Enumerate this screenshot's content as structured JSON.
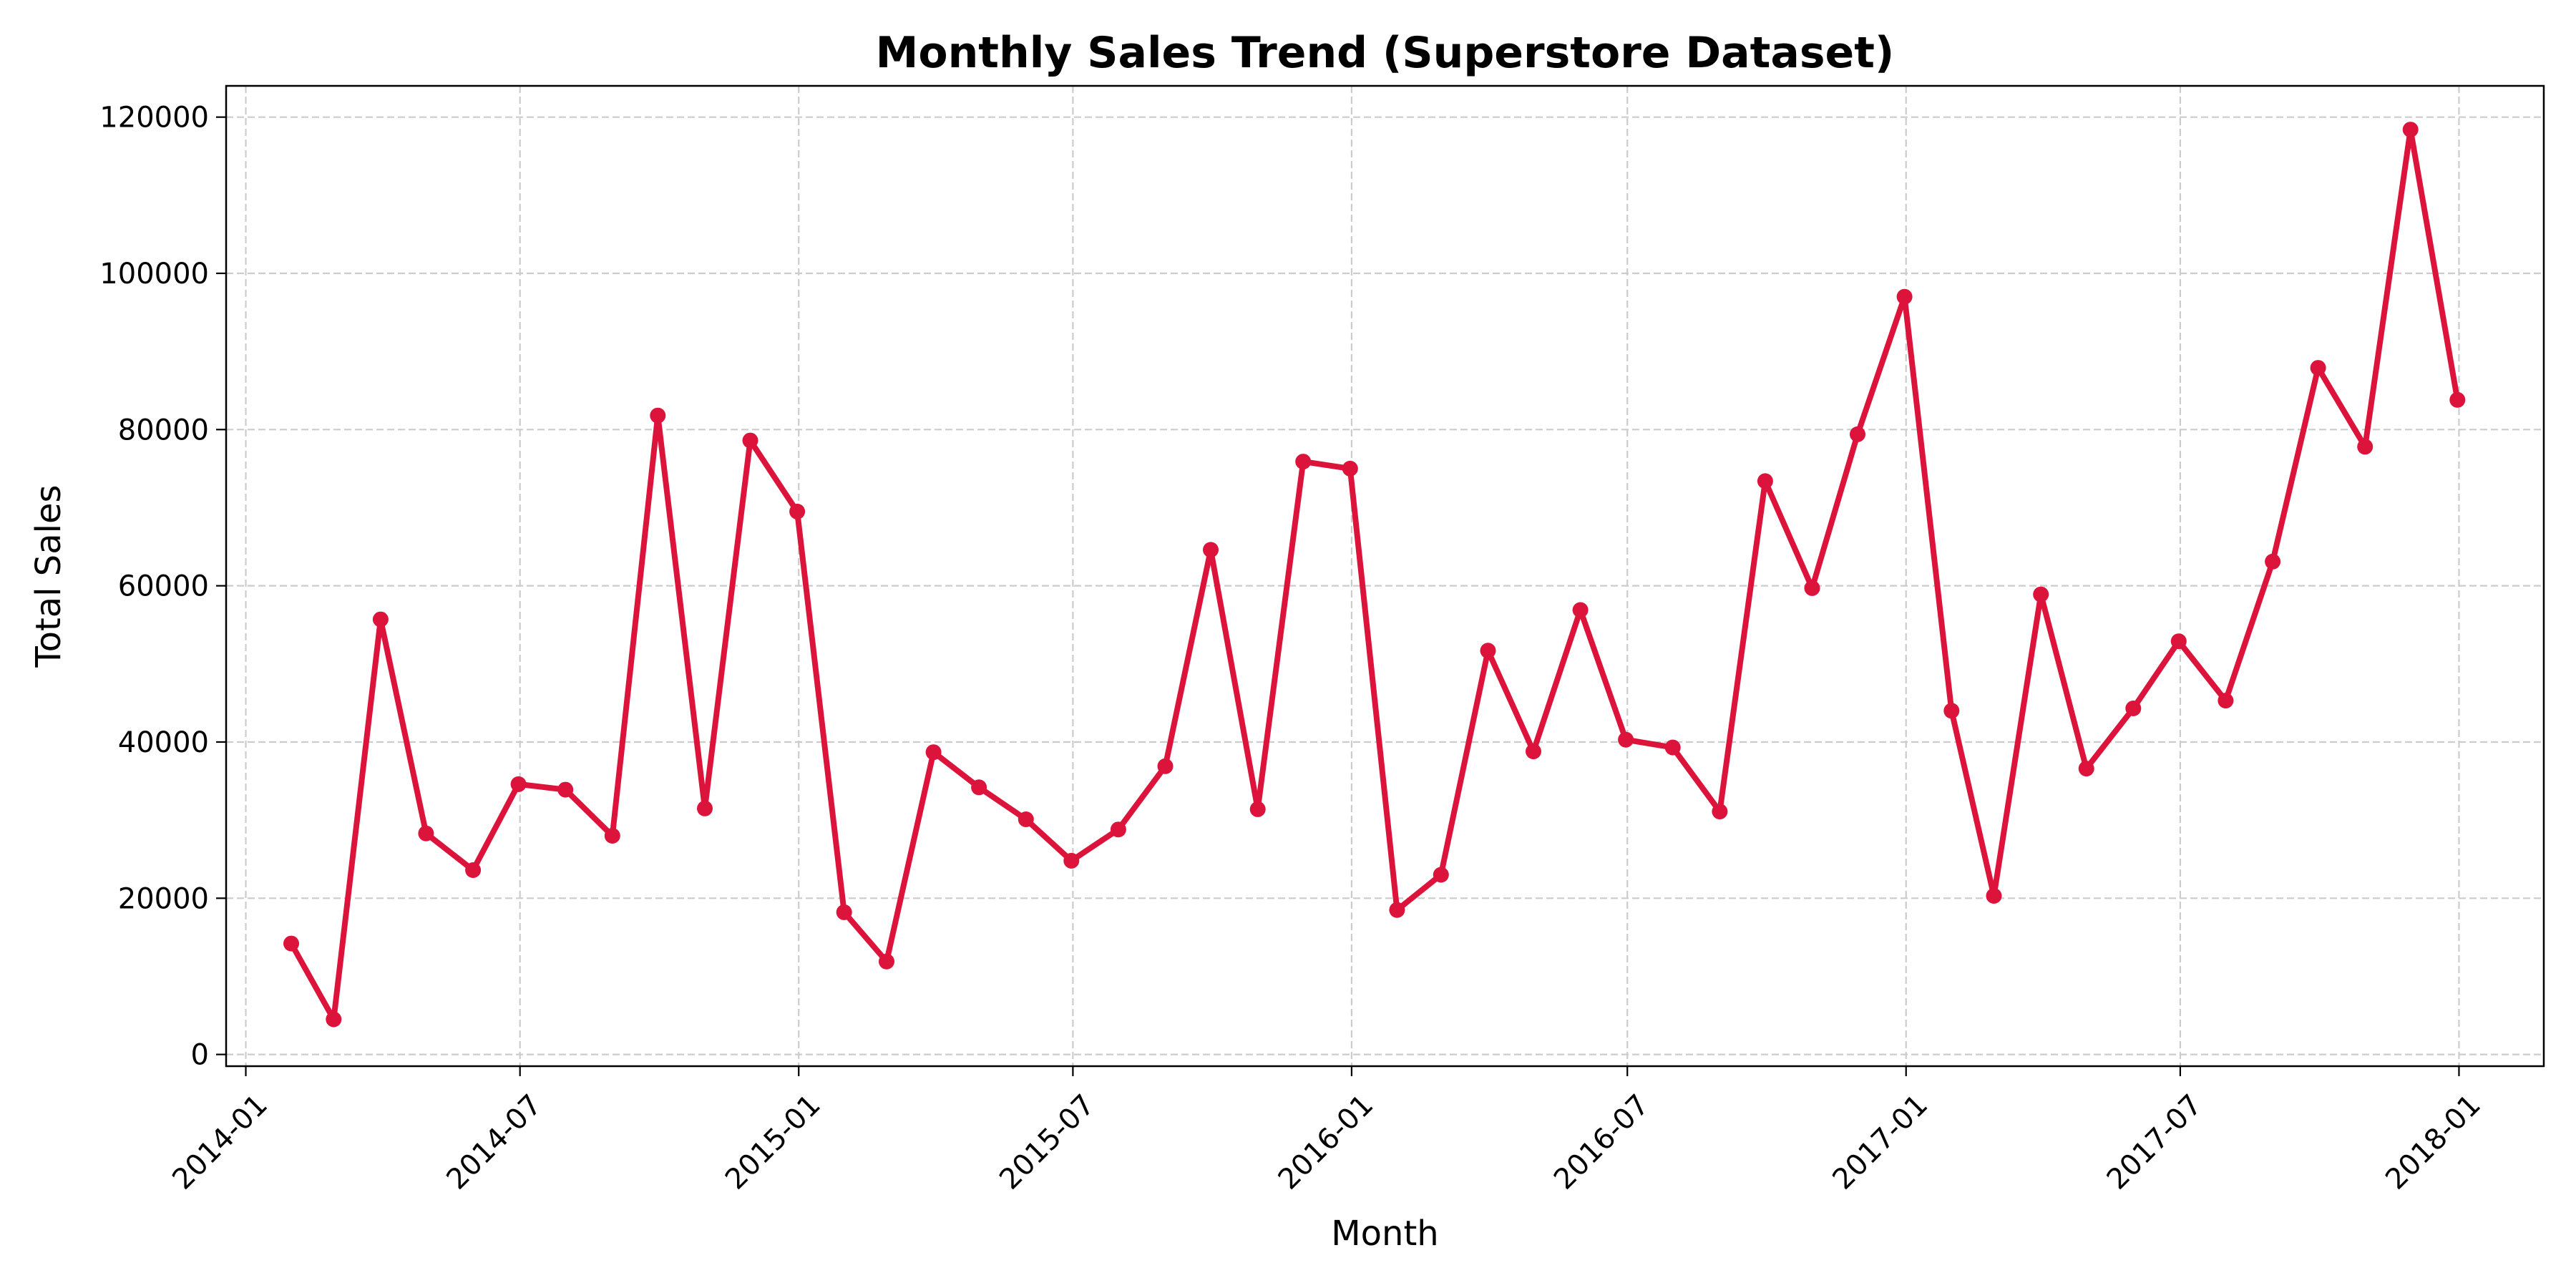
{
  "chart_data": {
    "type": "line",
    "title": "Monthly Sales Trend (Superstore Dataset)",
    "xlabel": "Month",
    "ylabel": "Total Sales",
    "ylim": [
      -1500,
      124000
    ],
    "xlim": [
      "2013-12-19",
      "2018-02-26"
    ],
    "grid": true,
    "x_ticks": [
      "2014-01",
      "2014-07",
      "2015-01",
      "2015-07",
      "2016-01",
      "2016-07",
      "2017-01",
      "2017-07",
      "2018-01"
    ],
    "y_ticks": [
      "0",
      "20000",
      "40000",
      "60000",
      "80000",
      "100000",
      "120000"
    ],
    "y_tick_values": [
      0,
      20000,
      40000,
      60000,
      80000,
      100000,
      120000
    ],
    "colors": {
      "line": "#dc143c"
    },
    "series": [
      {
        "x": [
          "2014-01-31",
          "2014-02-28",
          "2014-03-31",
          "2014-04-30",
          "2014-05-31",
          "2014-06-30",
          "2014-07-31",
          "2014-08-31",
          "2014-09-30",
          "2014-10-31",
          "2014-11-30",
          "2014-12-31",
          "2015-01-31",
          "2015-02-28",
          "2015-03-31",
          "2015-04-30",
          "2015-05-31",
          "2015-06-30",
          "2015-07-31",
          "2015-08-31",
          "2015-09-30",
          "2015-10-31",
          "2015-11-30",
          "2015-12-31",
          "2016-01-31",
          "2016-02-29",
          "2016-03-31",
          "2016-04-30",
          "2016-05-31",
          "2016-06-30",
          "2016-07-31",
          "2016-08-31",
          "2016-09-30",
          "2016-10-31",
          "2016-11-30",
          "2016-12-31",
          "2017-01-31",
          "2017-02-28",
          "2017-03-31",
          "2017-04-30",
          "2017-05-31",
          "2017-06-30",
          "2017-07-31",
          "2017-08-31",
          "2017-09-30",
          "2017-10-31",
          "2017-11-30",
          "2017-12-31"
        ],
        "values": [
          14200,
          4500,
          55700,
          28300,
          23600,
          34600,
          33900,
          28000,
          81800,
          31500,
          78600,
          69500,
          18200,
          11900,
          38700,
          34200,
          30100,
          24800,
          28800,
          36900,
          64600,
          31400,
          75900,
          75000,
          18500,
          23000,
          51700,
          38800,
          56900,
          40300,
          39300,
          31100,
          73400,
          59700,
          79400,
          97000,
          44000,
          20300,
          58900,
          36600,
          44300,
          52900,
          45300,
          63100,
          87900,
          77800,
          118400,
          83800
        ]
      }
    ]
  }
}
